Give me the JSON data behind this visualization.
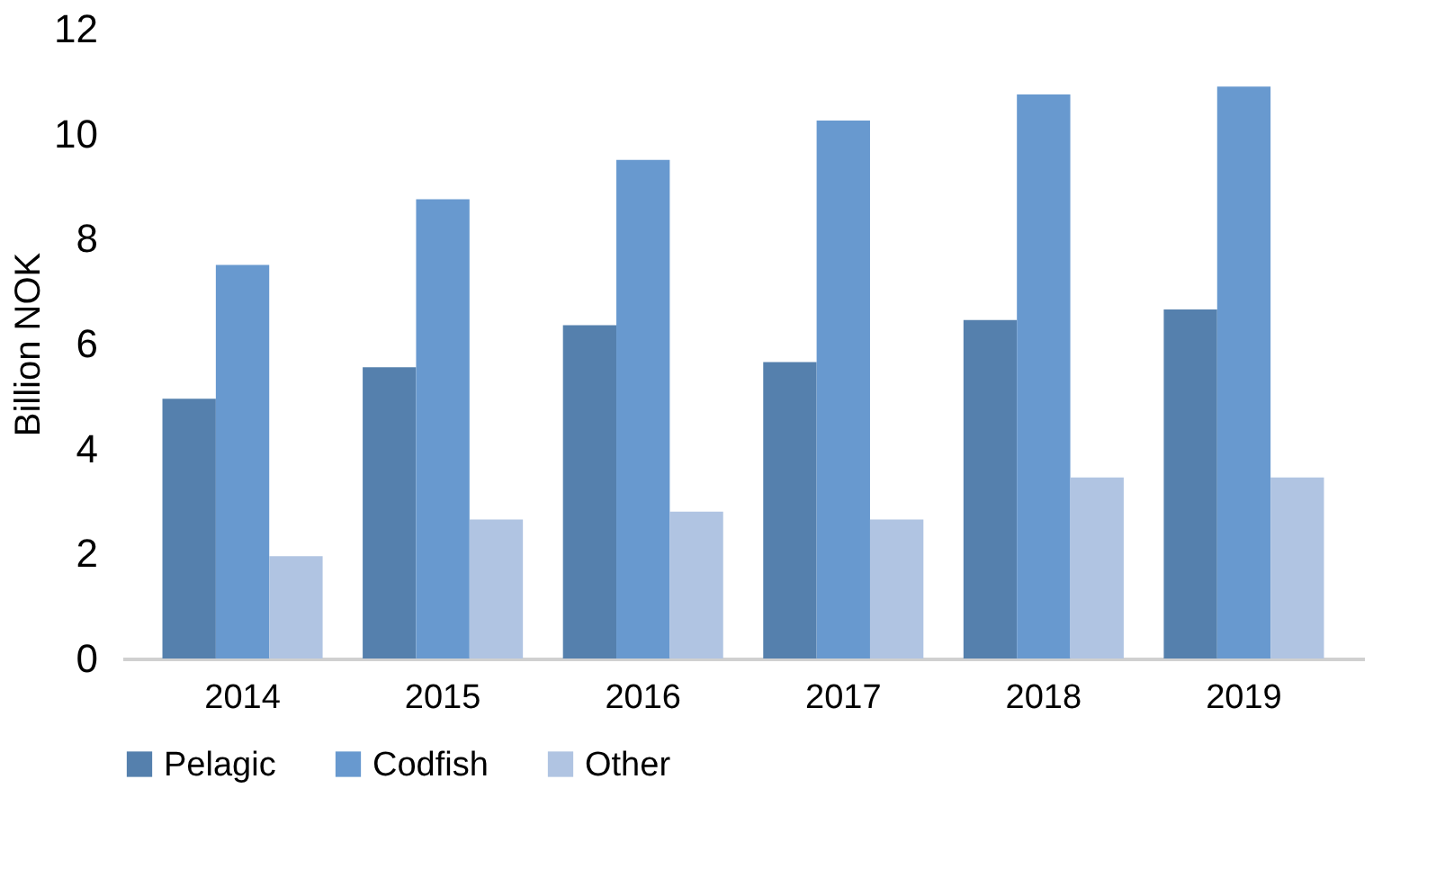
{
  "chart_data": {
    "type": "bar",
    "ylabel": "Billion NOK",
    "categories": [
      "2014",
      "2015",
      "2016",
      "2017",
      "2018",
      "2019"
    ],
    "series": [
      {
        "name": "Pelagic",
        "color": "#5580ad",
        "values": [
          4.95,
          5.55,
          6.35,
          5.65,
          6.45,
          6.65
        ]
      },
      {
        "name": "Codfish",
        "color": "#6899cf",
        "values": [
          7.5,
          8.75,
          9.5,
          10.25,
          10.75,
          10.9
        ]
      },
      {
        "name": "Other",
        "color": "#b0c4e2",
        "values": [
          1.95,
          2.65,
          2.8,
          2.65,
          3.45,
          3.45
        ]
      }
    ],
    "ylim": [
      0,
      12
    ],
    "yticks": [
      0,
      2,
      4,
      6,
      8,
      10,
      12
    ],
    "grid": false,
    "legend": "bottom"
  }
}
